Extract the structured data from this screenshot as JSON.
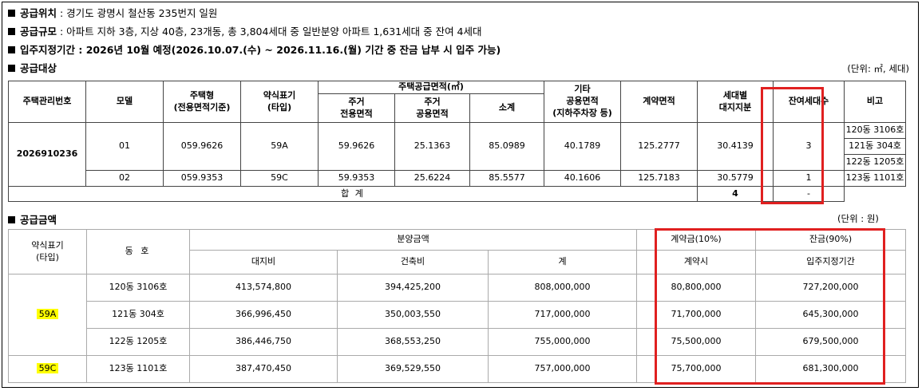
{
  "info": {
    "location_label": "공급위치",
    "location_value": " : 경기도 광명시 철산동 235번지 일원",
    "scale_label": "공급규모",
    "scale_value": " : 아파트 지하 3층, 지상 40층, 23개동, 총 3,804세대 중 일반분양 아파트 1,631세대 중 잔여 4세대",
    "movein_label": "입주지정기간",
    "movein_value": " : 2026년 10월 예정(2026.10.07.(수) ~ 2026.11.16.(월) 기간 중 잔금 납부 시 입주 가능)",
    "target_label": "공급대상",
    "target_unit": "(단위: ㎡, 세대)",
    "price_label": "공급금액",
    "price_unit": "(단위 : 원)"
  },
  "table1": {
    "headers": {
      "mgmt_no": "주택관리번호",
      "model": "모델",
      "housing_type": "주택형\n(전용면적기준)",
      "type_label": "약식표기\n(타입)",
      "supply_area": "주택공급면적(㎡)",
      "exclusive": "주거\n전용면적",
      "common": "주거\n공용면적",
      "subtotal": "소계",
      "other_common": "기타\n공용면적\n(지하주차장 등)",
      "contract_area": "계약면적",
      "land_share": "세대별\n대지지분",
      "remaining": "잔여세대수",
      "note": "비고"
    },
    "mgmt_no": "2026910236",
    "rows": [
      {
        "model": "01",
        "housing_type": "059.9626",
        "type": "59A",
        "exclusive": "59.9626",
        "common": "25.1363",
        "subtotal": "85.0989",
        "other": "40.1789",
        "contract": "125.2777",
        "land": "30.4139",
        "remaining": "3",
        "notes": [
          "120동 3106호",
          "121동 304호",
          "122동 1205호"
        ]
      },
      {
        "model": "02",
        "housing_type": "059.9353",
        "type": "59C",
        "exclusive": "59.9353",
        "common": "25.6224",
        "subtotal": "85.5577",
        "other": "40.1606",
        "contract": "125.7183",
        "land": "30.5779",
        "remaining": "1",
        "notes": [
          "123동 1101호"
        ]
      }
    ],
    "total_label": "합 계",
    "total_remaining": "4",
    "total_note": "-"
  },
  "table2": {
    "headers": {
      "type_label": "약식표기\n(타입)",
      "unit": "동 호",
      "sale_price": "분양금액",
      "land_cost": "대지비",
      "building_cost": "건축비",
      "total": "계",
      "deposit": "계약금(10%)",
      "deposit_when": "계약시",
      "balance": "잔금(90%)",
      "balance_when": "입주지정기간"
    },
    "rows": [
      {
        "type": "59A",
        "unit": "120동 3106호",
        "land": "413,574,800",
        "building": "394,425,200",
        "total": "808,000,000",
        "deposit": "80,800,000",
        "balance": "727,200,000"
      },
      {
        "type": "59A",
        "unit": "121동 304호",
        "land": "366,996,450",
        "building": "350,003,550",
        "total": "717,000,000",
        "deposit": "71,700,000",
        "balance": "645,300,000"
      },
      {
        "type": "59A",
        "unit": "122동 1205호",
        "land": "386,446,750",
        "building": "368,553,250",
        "total": "755,000,000",
        "deposit": "75,500,000",
        "balance": "679,500,000"
      },
      {
        "type": "59C",
        "unit": "123동 1101호",
        "land": "387,470,450",
        "building": "369,529,550",
        "total": "757,000,000",
        "deposit": "75,700,000",
        "balance": "681,300,000"
      }
    ]
  },
  "colors": {
    "highlight": "#ffff00",
    "annotation_box": "#e02020"
  }
}
